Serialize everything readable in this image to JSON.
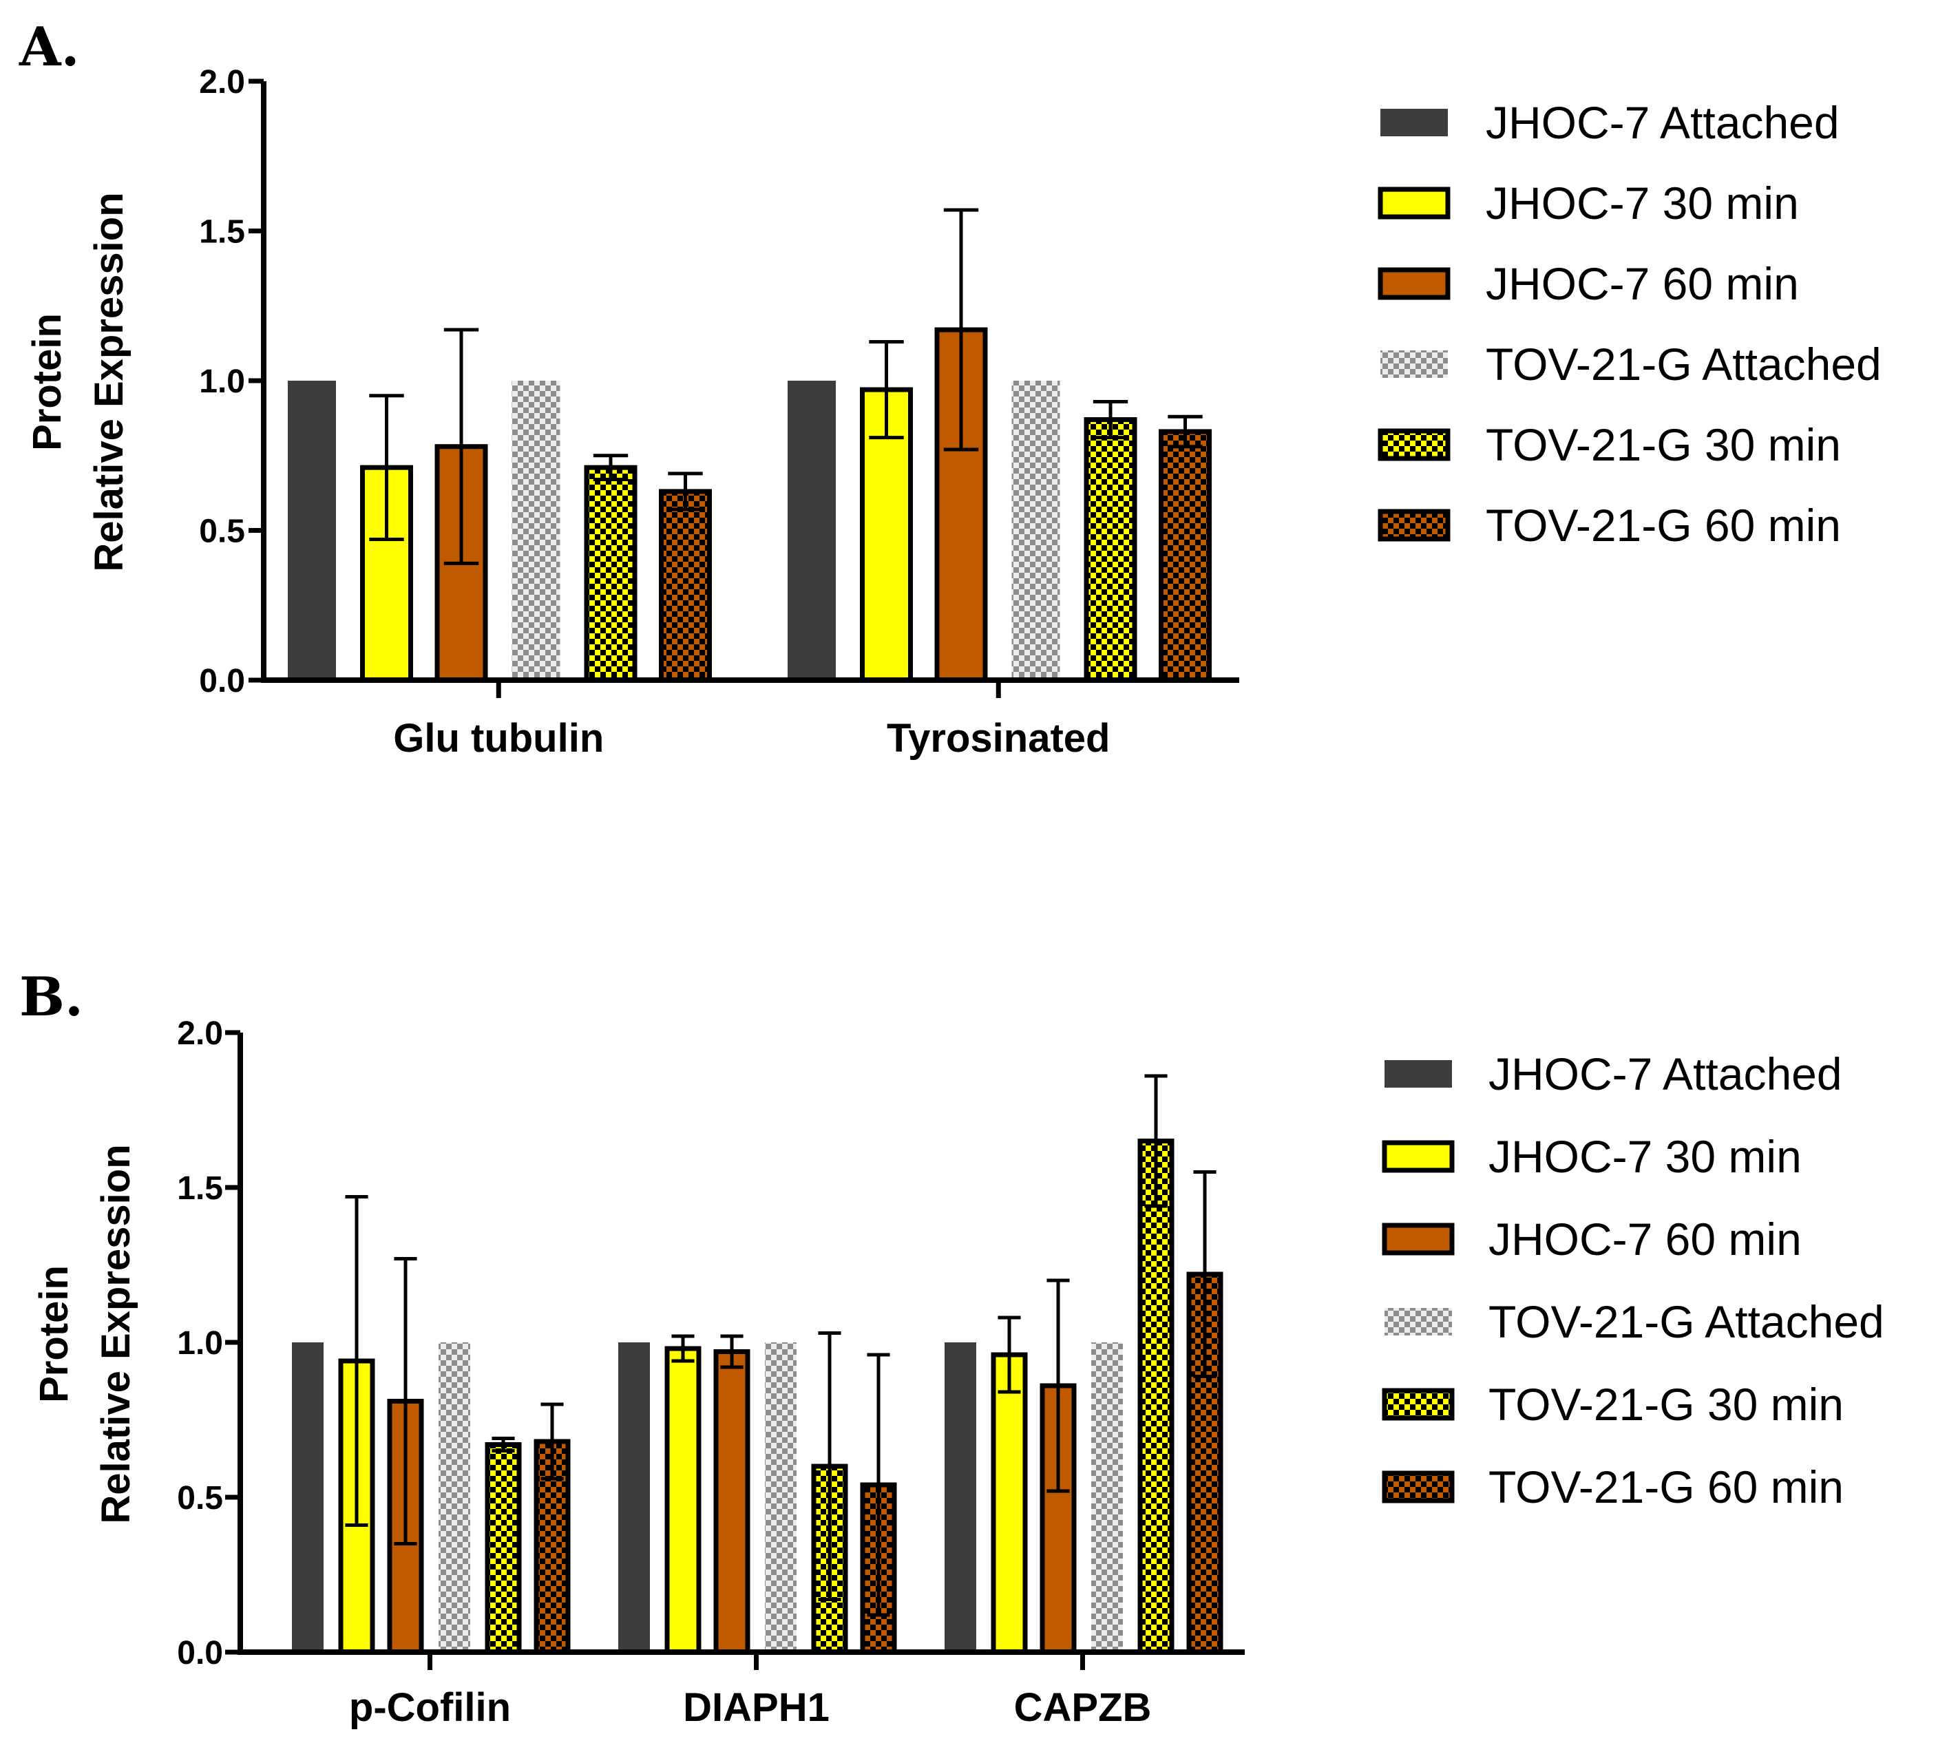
{
  "colors": {
    "jhoc_attached": "#3d3d3d",
    "jhoc_30": "#ffff00",
    "jhoc_60": "#c05a00",
    "tov_attached_a": "#8c8c8c",
    "tov_attached_b": "#ececec",
    "tov_30_a": "#ffff00",
    "tov_30_b": "#000000",
    "tov_60_a": "#c05a00",
    "tov_60_b": "#000000"
  },
  "legend": [
    {
      "label": "JHOC-7 Attached",
      "style": "jhoc_attached"
    },
    {
      "label": "JHOC-7 30 min",
      "style": "jhoc_30"
    },
    {
      "label": "JHOC-7 60 min",
      "style": "jhoc_60"
    },
    {
      "label": "TOV-21-G Attached",
      "style": "tov_attached"
    },
    {
      "label": "TOV-21-G 30 min",
      "style": "tov_30"
    },
    {
      "label": "TOV-21-G 60 min",
      "style": "tov_60"
    }
  ],
  "chart_data": [
    {
      "panel": "A.",
      "type": "bar",
      "ylabel": [
        "Protein",
        "Relative Expression"
      ],
      "ylim": [
        0,
        2.0
      ],
      "yticks": [
        "0.0",
        "0.5",
        "1.0",
        "1.5",
        "2.0"
      ],
      "categories": [
        "Glu tubulin",
        "Tyrosinated"
      ],
      "legend_position": "right",
      "series": [
        {
          "name": "JHOC-7 Attached",
          "values": [
            1.0,
            1.0
          ],
          "errors": [
            null,
            null
          ]
        },
        {
          "name": "JHOC-7 30 min",
          "values": [
            0.71,
            0.97
          ],
          "errors": [
            0.24,
            0.16
          ]
        },
        {
          "name": "JHOC-7 60 min",
          "values": [
            0.78,
            1.17
          ],
          "errors": [
            0.39,
            0.4
          ]
        },
        {
          "name": "TOV-21-G Attached",
          "values": [
            1.0,
            1.0
          ],
          "errors": [
            null,
            null
          ]
        },
        {
          "name": "TOV-21-G 30 min",
          "values": [
            0.71,
            0.87
          ],
          "errors": [
            0.04,
            0.06
          ]
        },
        {
          "name": "TOV-21-G 60 min",
          "values": [
            0.63,
            0.83
          ],
          "errors": [
            0.06,
            0.05
          ]
        }
      ]
    },
    {
      "panel": "B.",
      "type": "bar",
      "ylabel": [
        "Protein",
        "Relative Expression"
      ],
      "ylim": [
        0,
        2.0
      ],
      "yticks": [
        "0.0",
        "0.5",
        "1.0",
        "1.5",
        "2.0"
      ],
      "categories": [
        "p-Cofilin",
        "DIAPH1",
        "CAPZB"
      ],
      "legend_position": "right",
      "series": [
        {
          "name": "JHOC-7 Attached",
          "values": [
            1.0,
            1.0,
            1.0
          ],
          "errors": [
            null,
            null,
            null
          ]
        },
        {
          "name": "JHOC-7 30 min",
          "values": [
            0.94,
            0.98,
            0.96
          ],
          "errors": [
            0.53,
            0.04,
            0.12
          ]
        },
        {
          "name": "JHOC-7 60 min",
          "values": [
            0.81,
            0.97,
            0.86
          ],
          "errors": [
            0.46,
            0.05,
            0.34
          ]
        },
        {
          "name": "TOV-21-G Attached",
          "values": [
            1.0,
            1.0,
            1.0
          ],
          "errors": [
            null,
            null,
            null
          ]
        },
        {
          "name": "TOV-21-G 30 min",
          "values": [
            0.67,
            0.6,
            1.65
          ],
          "errors": [
            0.02,
            0.43,
            0.21
          ]
        },
        {
          "name": "TOV-21-G 60 min",
          "values": [
            0.68,
            0.54,
            1.22
          ],
          "errors": [
            0.12,
            0.42,
            0.33
          ]
        }
      ]
    }
  ]
}
